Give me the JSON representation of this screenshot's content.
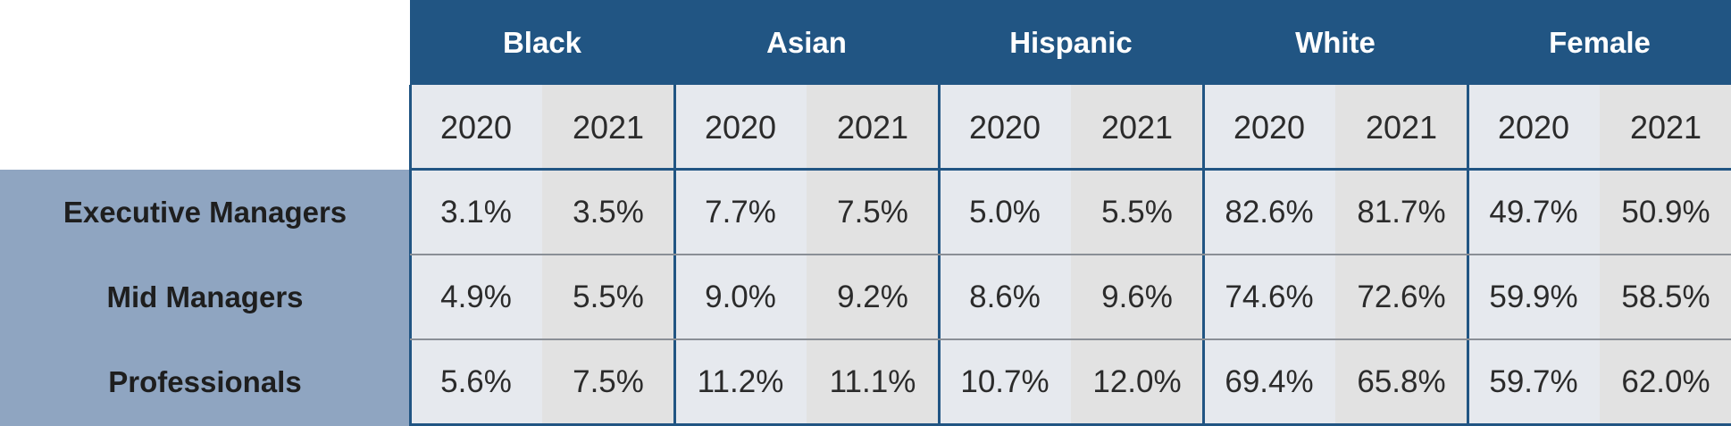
{
  "chart_data": {
    "type": "table",
    "groups": [
      "Black",
      "Asian",
      "Hispanic",
      "White",
      "Female"
    ],
    "years": [
      "2020",
      "2021"
    ],
    "rows": [
      {
        "label": "Executive Managers",
        "values": [
          "3.1%",
          "3.5%",
          "7.7%",
          "7.5%",
          "5.0%",
          "5.5%",
          "82.6%",
          "81.7%",
          "49.7%",
          "50.9%"
        ]
      },
      {
        "label": "Mid Managers",
        "values": [
          "4.9%",
          "5.5%",
          "9.0%",
          "9.2%",
          "8.6%",
          "9.6%",
          "74.6%",
          "72.6%",
          "59.9%",
          "58.5%"
        ]
      },
      {
        "label": "Professionals",
        "values": [
          "5.6%",
          "7.5%",
          "11.2%",
          "11.1%",
          "10.7%",
          "12.0%",
          "69.4%",
          "65.8%",
          "59.7%",
          "62.0%"
        ]
      }
    ]
  },
  "colors": {
    "header": "#215583",
    "row_header": "#8fa5c1",
    "cell_light": "#e6e9ee",
    "cell_dark": "#e2e2e2",
    "text": "#2b2b2b"
  }
}
